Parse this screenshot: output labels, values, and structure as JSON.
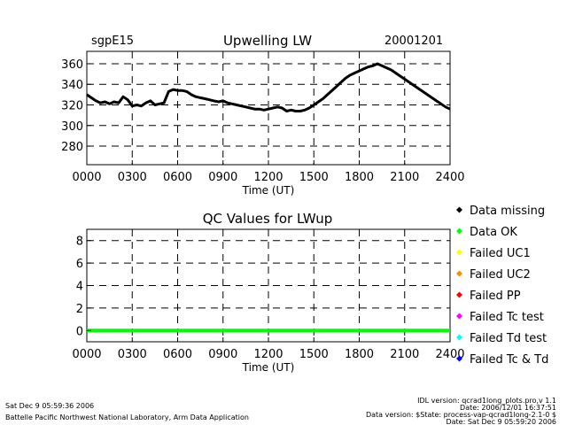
{
  "header": {
    "site": "sgpE15",
    "title": "Upwelling LW",
    "date": "20001201"
  },
  "qc_title": "QC Values for LWup",
  "legend": [
    {
      "label": "Data missing",
      "color": "#000000"
    },
    {
      "label": "Data OK",
      "color": "#00ff00"
    },
    {
      "label": "Failed UC1",
      "color": "#ffff00"
    },
    {
      "label": "Failed UC2",
      "color": "#ff8c00"
    },
    {
      "label": "Failed PP",
      "color": "#ff0000"
    },
    {
      "label": "Failed Tc test",
      "color": "#ff00ff"
    },
    {
      "label": "Failed Td test",
      "color": "#00ffff"
    },
    {
      "label": "Failed Tc & Td",
      "color": "#0000ff"
    }
  ],
  "footer": {
    "left_line1": "Sat Dec  9 05:59:36 2006",
    "left_line2": "Battelle Pacific Northwest National Laboratory, Arm Data Application",
    "right_line1": "IDL version: qcrad1long_plots.pro,v 1.1",
    "right_line2": "Date: 2006/12/01 16:37:51",
    "right_line3": "Data version: $State: process-vap-qcrad1long-2.1-0 $",
    "right_line4": "Date: Sat Dec  9 05:59:20 2006"
  },
  "chart_data": [
    {
      "type": "line",
      "title": "Upwelling LW",
      "xlabel": "Time (UT)",
      "ylabel": "",
      "xlim": [
        0,
        2400
      ],
      "ylim": [
        262,
        372
      ],
      "x_ticks": [
        "0000",
        "0300",
        "0600",
        "0900",
        "1200",
        "1500",
        "1800",
        "2100",
        "2400"
      ],
      "y_ticks": [
        280,
        300,
        320,
        340,
        360
      ],
      "grid": true,
      "series": [
        {
          "color": "#000000",
          "x": [
            0,
            30,
            60,
            90,
            120,
            150,
            180,
            210,
            240,
            270,
            300,
            330,
            360,
            390,
            420,
            450,
            480,
            510,
            540,
            570,
            600,
            630,
            660,
            690,
            720,
            750,
            780,
            810,
            840,
            870,
            900,
            930,
            960,
            990,
            1020,
            1050,
            1080,
            1110,
            1140,
            1170,
            1200,
            1230,
            1260,
            1290,
            1320,
            1350,
            1380,
            1410,
            1440,
            1470,
            1500,
            1530,
            1560,
            1590,
            1620,
            1650,
            1680,
            1710,
            1740,
            1770,
            1800,
            1830,
            1860,
            1890,
            1920,
            1950,
            1980,
            2010,
            2040,
            2070,
            2100,
            2130,
            2160,
            2190,
            2220,
            2250,
            2280,
            2310,
            2340,
            2370,
            2400
          ],
          "y": [
            330,
            327,
            324,
            322,
            323,
            321,
            323,
            322,
            328,
            325,
            319,
            320,
            319,
            322,
            324,
            320,
            321,
            322,
            333,
            335,
            334,
            334,
            333,
            330,
            328,
            327,
            326,
            325,
            324,
            323,
            324,
            322,
            321,
            320,
            319,
            318,
            317,
            316,
            316,
            315,
            316,
            317,
            318,
            317,
            314,
            315,
            314,
            314,
            315,
            317,
            320,
            323,
            326,
            330,
            334,
            338,
            342,
            346,
            349,
            351,
            353,
            355,
            357,
            358,
            360,
            358,
            356,
            354,
            351,
            348,
            345,
            342,
            339,
            336,
            333,
            330,
            327,
            324,
            321,
            318,
            316
          ]
        }
      ]
    },
    {
      "type": "line",
      "title": "QC Values for LWup",
      "xlabel": "Time (UT)",
      "ylabel": "",
      "xlim": [
        0,
        2400
      ],
      "ylim": [
        -1,
        9
      ],
      "x_ticks": [
        "0000",
        "0300",
        "0600",
        "0900",
        "1200",
        "1500",
        "1800",
        "2100",
        "2400"
      ],
      "y_ticks": [
        0,
        2,
        4,
        6,
        8
      ],
      "grid": true,
      "series": [
        {
          "color": "#00ff00",
          "x": [
            0,
            2400
          ],
          "y": [
            0,
            0
          ]
        }
      ]
    }
  ]
}
